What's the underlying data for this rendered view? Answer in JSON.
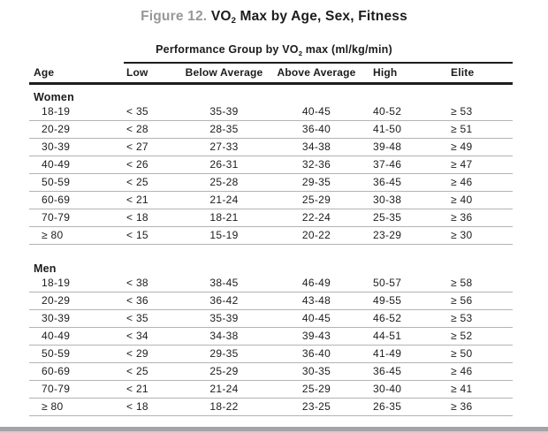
{
  "colors": {
    "figure-label-color": "#98989b",
    "text-color": "#1c1c1e",
    "separator-color": "#b3b3b6",
    "rule-color": "#1d1d1d",
    "bottom-bar-color": "#a4a4a8"
  },
  "header": {
    "figure_label": "Figure 12.",
    "title_vo": " VO",
    "title_sub": "2",
    "title_rest": " Max by Age, Sex, Fitness",
    "subtitle_pre": "Performance Group by VO",
    "subtitle_sub": "2",
    "subtitle_post": " max (ml/kg/min)"
  },
  "table": {
    "columns": [
      "Age",
      "Low",
      "Below Average",
      "Above Average",
      "High",
      "Elite"
    ],
    "sections": [
      {
        "label": "Women",
        "rows": [
          [
            "18-19",
            "< 35",
            "35-39",
            "40-45",
            "40-52",
            "≥ 53"
          ],
          [
            "20-29",
            "< 28",
            "28-35",
            "36-40",
            "41-50",
            "≥ 51"
          ],
          [
            "30-39",
            "< 27",
            "27-33",
            "34-38",
            "39-48",
            "≥ 49"
          ],
          [
            "40-49",
            "< 26",
            "26-31",
            "32-36",
            "37-46",
            "≥ 47"
          ],
          [
            "50-59",
            "< 25",
            "25-28",
            "29-35",
            "36-45",
            "≥ 46"
          ],
          [
            "60-69",
            "< 21",
            "21-24",
            "25-29",
            "30-38",
            "≥ 40"
          ],
          [
            "70-79",
            "< 18",
            "18-21",
            "22-24",
            "25-35",
            "≥ 36"
          ],
          [
            "≥ 80",
            "< 15",
            "15-19",
            "20-22",
            "23-29",
            "≥ 30"
          ]
        ]
      },
      {
        "label": "Men",
        "rows": [
          [
            "18-19",
            "< 38",
            "38-45",
            "46-49",
            "50-57",
            "≥ 58"
          ],
          [
            "20-29",
            "< 36",
            "36-42",
            "43-48",
            "49-55",
            "≥ 56"
          ],
          [
            "30-39",
            "< 35",
            "35-39",
            "40-45",
            "46-52",
            "≥ 53"
          ],
          [
            "40-49",
            "< 34",
            "34-38",
            "39-43",
            "44-51",
            "≥ 52"
          ],
          [
            "50-59",
            "< 29",
            "29-35",
            "36-40",
            "41-49",
            "≥ 50"
          ],
          [
            "60-69",
            "< 25",
            "25-29",
            "30-35",
            "36-45",
            "≥ 46"
          ],
          [
            "70-79",
            "< 21",
            "21-24",
            "25-29",
            "30-40",
            "≥ 41"
          ],
          [
            "≥ 80",
            "< 18",
            "18-22",
            "23-25",
            "26-35",
            "≥ 36"
          ]
        ]
      }
    ]
  }
}
